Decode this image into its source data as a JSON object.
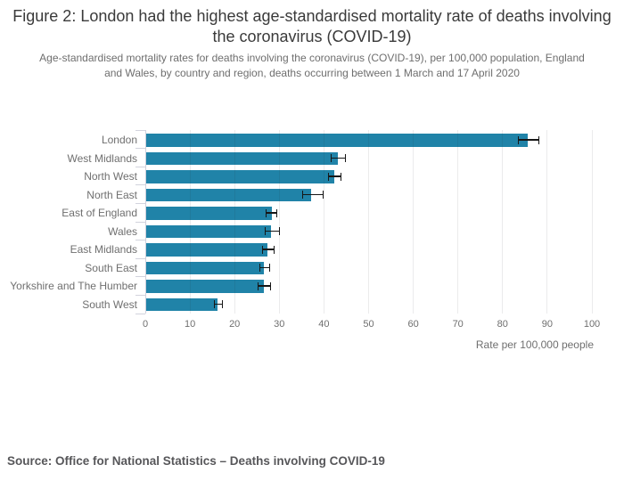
{
  "title": "Figure 2: London had the highest age-standardised mortality rate of deaths involving the coronavirus (COVID-19)",
  "subtitle": "Age-standardised mortality rates for deaths involving the coronavirus (COVID-19), per 100,000 population, England and Wales, by country and region, deaths occurring between 1 March and 17 April 2020",
  "source": "Source: Office for National Statistics – Deaths involving COVID-19",
  "chart_data": {
    "type": "bar",
    "orientation": "horizontal",
    "title": "Figure 2: London had the highest age-standardised mortality rate of deaths involving the coronavirus (COVID-19)",
    "xlabel": "Rate per 100,000 people",
    "ylabel": "",
    "categories": [
      "London",
      "West Midlands",
      "North West",
      "North East",
      "East of England",
      "Wales",
      "East Midlands",
      "South East",
      "Yorkshire and The Humber",
      "South West"
    ],
    "values": [
      85.7,
      43.2,
      42.4,
      37.1,
      28.4,
      28.2,
      27.4,
      26.6,
      26.5,
      16.2
    ],
    "error_low": [
      83.5,
      41.5,
      41.0,
      35.1,
      27.0,
      26.7,
      26.1,
      25.5,
      25.2,
      15.3
    ],
    "error_high": [
      88.2,
      45.0,
      43.9,
      39.9,
      29.6,
      30.2,
      28.9,
      27.9,
      28.1,
      17.3
    ],
    "xticks": [
      0,
      10,
      20,
      30,
      40,
      50,
      60,
      70,
      80,
      90,
      100
    ],
    "xlim": [
      0,
      100
    ],
    "grid": true,
    "legend": "none",
    "bar_color": "#2083a8",
    "error_bar_color": "#161616",
    "gridline_color": "#e8e8ec",
    "text_color": "#6f6f6f"
  }
}
